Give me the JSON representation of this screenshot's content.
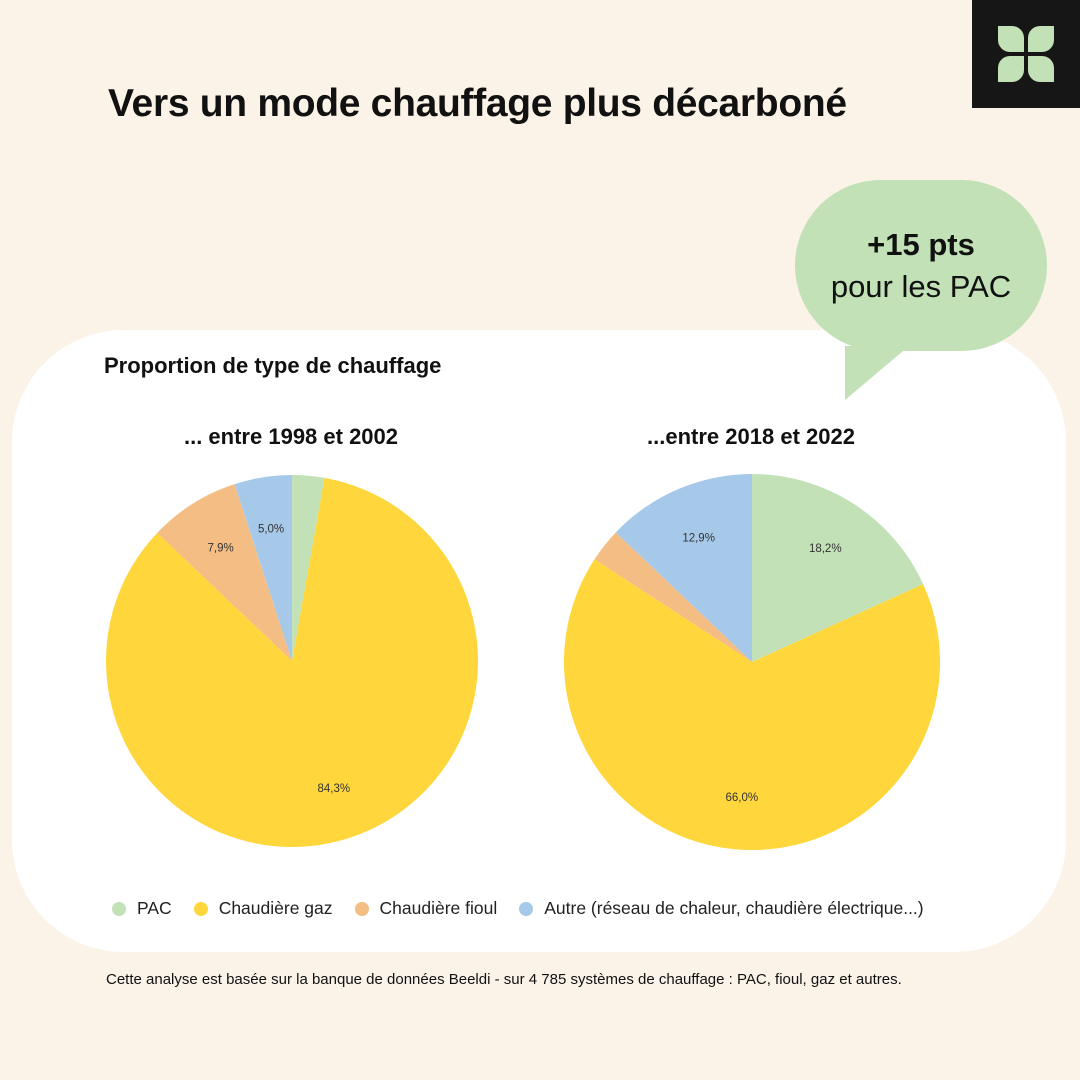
{
  "title": "Vers un mode chauffage plus décarboné",
  "logo": {
    "icon": "four-leaf-logo",
    "color": "#c2e1b7",
    "background": "#161616"
  },
  "callout": {
    "highlight": "+15 pts",
    "text": "pour les PAC",
    "color": "#c2e1b7"
  },
  "footnote": "Cette analyse est basée sur la banque de données Beeldi - sur 4 785 systèmes de chauffage : PAC, fioul, gaz et autres.",
  "chart_data": {
    "type": "pie",
    "title": "Proportion de type de chauffage",
    "categories": [
      "PAC",
      "Chaudière gaz",
      "Chaudière fioul",
      "Autre (réseau de chaleur, chaudière électrique...)"
    ],
    "colors": [
      "#c2e1b7",
      "#ffd73c",
      "#f4bd84",
      "#a7c9e9"
    ],
    "legend_position": "bottom",
    "charts": [
      {
        "subtitle": "... entre 1998 et 2002",
        "values": [
          2.8,
          84.3,
          7.9,
          5.0
        ],
        "labels": [
          "",
          "84,3%",
          "7,9%",
          "5,0%"
        ]
      },
      {
        "subtitle": "...entre 2018 et 2022",
        "values": [
          18.2,
          66.0,
          2.9,
          12.9
        ],
        "labels": [
          "18,2%",
          "66,0%",
          "",
          "12,9%"
        ]
      }
    ]
  }
}
